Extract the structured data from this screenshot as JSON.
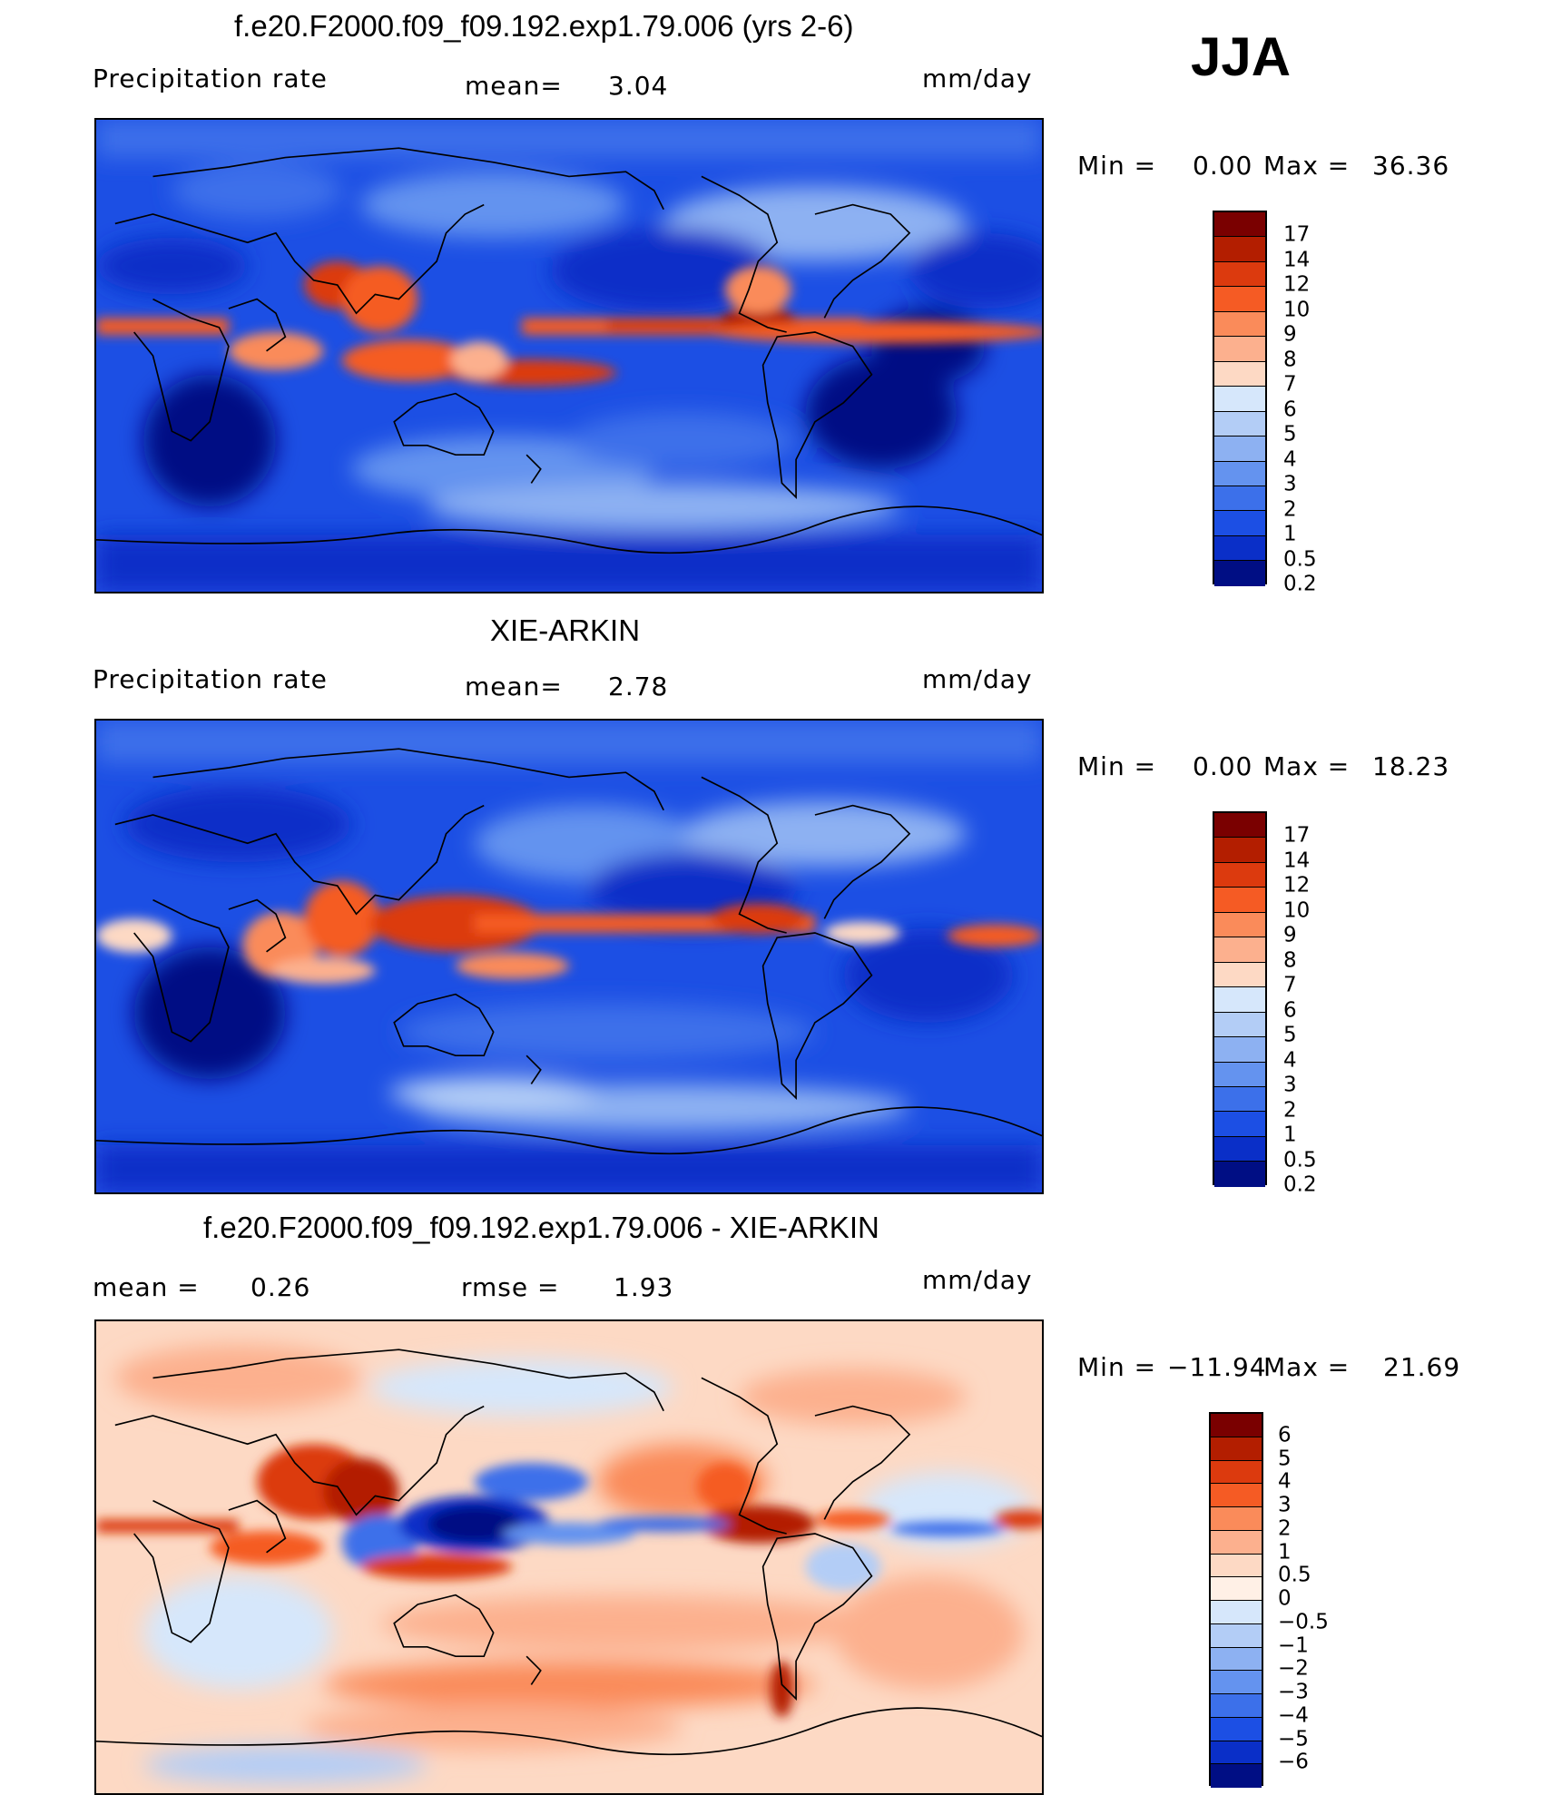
{
  "season": "JJA",
  "panels": [
    {
      "id": "model",
      "title": "f.e20.F2000.f09_f09.192.exp1.79.006 (yrs 2-6)",
      "left_label": "Precipitation  rate",
      "stat1_label": "mean=",
      "stat1_value": "3.04",
      "stat2_label": "",
      "stat2_value": "",
      "units": "mm/day",
      "min_label": "Min  =",
      "min_value": "0.00",
      "max_label": "Max  =",
      "max_value": "36.36",
      "colorbar_labels": [
        "17",
        "14",
        "12",
        "10",
        "9",
        "8",
        "7",
        "6",
        "5",
        "4",
        "3",
        "2",
        "1",
        "0.5",
        "0.2"
      ],
      "colors": [
        "#7a0000",
        "#b31e00",
        "#dc3a0e",
        "#f55b24",
        "#fa8b5a",
        "#fcb08e",
        "#fdd9c4",
        "#d6e7fb",
        "#b3cdf6",
        "#8db1f2",
        "#6493ef",
        "#3c70ea",
        "#1c4fe4",
        "#0a2fc8",
        "#000e84"
      ]
    },
    {
      "id": "obs",
      "title": "XIE-ARKIN",
      "left_label": "Precipitation  rate",
      "stat1_label": "mean=",
      "stat1_value": "2.78",
      "stat2_label": "",
      "stat2_value": "",
      "units": "mm/day",
      "min_label": "Min  =",
      "min_value": "0.00",
      "max_label": "Max  =",
      "max_value": "18.23",
      "colorbar_labels": [
        "17",
        "14",
        "12",
        "10",
        "9",
        "8",
        "7",
        "6",
        "5",
        "4",
        "3",
        "2",
        "1",
        "0.5",
        "0.2"
      ],
      "colors": [
        "#7a0000",
        "#b31e00",
        "#dc3a0e",
        "#f55b24",
        "#fa8b5a",
        "#fcb08e",
        "#fdd9c4",
        "#d6e7fb",
        "#b3cdf6",
        "#8db1f2",
        "#6493ef",
        "#3c70ea",
        "#1c4fe4",
        "#0a2fc8",
        "#000e84"
      ]
    },
    {
      "id": "diff",
      "title": "f.e20.F2000.f09_f09.192.exp1.79.006 - XIE-ARKIN",
      "left_label": "",
      "stat1_label": "mean =",
      "stat1_value": "0.26",
      "stat2_label": "rmse =",
      "stat2_value": "1.93",
      "units": "mm/day",
      "min_label": "Min  =",
      "min_value": "−11.94",
      "max_label": "Max  =",
      "max_value": "21.69",
      "colorbar_labels": [
        "6",
        "5",
        "4",
        "3",
        "2",
        "1",
        "0.5",
        "0",
        "−0.5",
        "−1",
        "−2",
        "−3",
        "−4",
        "−5",
        "−6"
      ],
      "colors": [
        "#7a0000",
        "#b31e00",
        "#dc3a0e",
        "#f55b24",
        "#fa8b5a",
        "#fcb08e",
        "#fdd9c4",
        "#fff0e6",
        "#d6e7fb",
        "#b3cdf6",
        "#8db1f2",
        "#6493ef",
        "#3c70ea",
        "#1c4fe4",
        "#0a2fc8",
        "#000e84"
      ]
    }
  ]
}
